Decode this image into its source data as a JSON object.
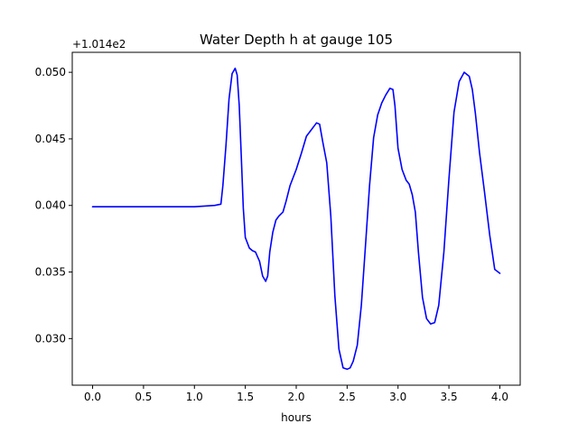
{
  "chart_data": {
    "type": "line",
    "title": "Water Depth h at gauge 105",
    "xlabel": "hours",
    "ylabel": "",
    "y_offset_label": "+1.014e2",
    "xlim": [
      -0.2,
      4.2
    ],
    "ylim": [
      0.0265,
      0.0515
    ],
    "grid": false,
    "x_ticks": [
      0.0,
      0.5,
      1.0,
      1.5,
      2.0,
      2.5,
      3.0,
      3.5,
      4.0
    ],
    "x_tick_labels": [
      "0.0",
      "0.5",
      "1.0",
      "1.5",
      "2.0",
      "2.5",
      "3.0",
      "3.5",
      "4.0"
    ],
    "y_ticks": [
      0.03,
      0.035,
      0.04,
      0.045,
      0.05
    ],
    "y_tick_labels": [
      "0.030",
      "0.035",
      "0.040",
      "0.045",
      "0.050"
    ],
    "series": [
      {
        "color": "#0000ff",
        "x": [
          0.0,
          0.5,
          1.0,
          1.2,
          1.26,
          1.28,
          1.31,
          1.34,
          1.37,
          1.4,
          1.42,
          1.44,
          1.46,
          1.48,
          1.5,
          1.54,
          1.57,
          1.6,
          1.64,
          1.67,
          1.7,
          1.72,
          1.74,
          1.77,
          1.8,
          1.83,
          1.87,
          1.9,
          1.94,
          2.0,
          2.05,
          2.1,
          2.15,
          2.2,
          2.23,
          2.26,
          2.3,
          2.34,
          2.38,
          2.42,
          2.46,
          2.5,
          2.53,
          2.56,
          2.6,
          2.64,
          2.68,
          2.72,
          2.76,
          2.8,
          2.84,
          2.88,
          2.92,
          2.95,
          2.97,
          3.0,
          3.04,
          3.08,
          3.11,
          3.14,
          3.17,
          3.2,
          3.24,
          3.28,
          3.32,
          3.36,
          3.4,
          3.45,
          3.5,
          3.55,
          3.6,
          3.65,
          3.7,
          3.73,
          3.76,
          3.8,
          3.85,
          3.9,
          3.95,
          4.0
        ],
        "y": [
          0.0399,
          0.0399,
          0.0399,
          0.04,
          0.0401,
          0.0415,
          0.0445,
          0.048,
          0.0499,
          0.0503,
          0.0498,
          0.0475,
          0.0438,
          0.0398,
          0.0376,
          0.0368,
          0.0366,
          0.0365,
          0.0358,
          0.0347,
          0.0343,
          0.0347,
          0.0365,
          0.038,
          0.0389,
          0.0392,
          0.0395,
          0.0403,
          0.0415,
          0.0427,
          0.0439,
          0.0452,
          0.0457,
          0.0462,
          0.0461,
          0.0448,
          0.0432,
          0.0392,
          0.0332,
          0.0292,
          0.0278,
          0.0277,
          0.0278,
          0.0283,
          0.0295,
          0.0325,
          0.037,
          0.0415,
          0.0451,
          0.0468,
          0.0477,
          0.0483,
          0.0488,
          0.0487,
          0.0475,
          0.0443,
          0.0427,
          0.0419,
          0.0416,
          0.0408,
          0.0395,
          0.0365,
          0.0331,
          0.0315,
          0.0311,
          0.0312,
          0.0325,
          0.0365,
          0.042,
          0.047,
          0.0493,
          0.05,
          0.0497,
          0.0487,
          0.0469,
          0.044,
          0.041,
          0.0378,
          0.0352,
          0.0349
        ]
      }
    ]
  }
}
